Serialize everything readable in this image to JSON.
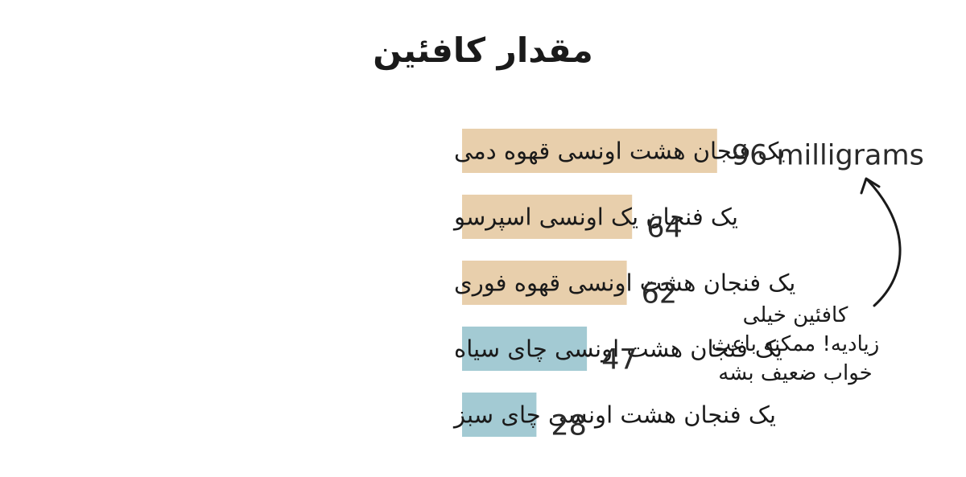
{
  "chart_data": {
    "type": "bar",
    "orientation": "horizontal",
    "title": "مقدار کافئین",
    "categories": [
      "یک فنجان هشت اونسی قهوه دمی",
      "یک فنجان یک اونسی اسپرسو",
      "یک فنجان هشت اونسی قهوه فوری",
      "یک فنجان هشت اونسی چای سیاه",
      "یک فنجان هشت اونسی چای سبز"
    ],
    "values": [
      96,
      64,
      62,
      47,
      28
    ],
    "value_labels": [
      "96 milligrams",
      "64",
      "62",
      "47",
      "28"
    ],
    "bar_colors": [
      "#e8cfac",
      "#e8cfac",
      "#e8cfac",
      "#a3cad3",
      "#a3cad3"
    ],
    "xlim": [
      0,
      100
    ],
    "grid": false,
    "legend": "none",
    "annotation": "کافئین خیلی\nزیادیه! ممکنه باعث\nخواب ضعیف بشه"
  }
}
